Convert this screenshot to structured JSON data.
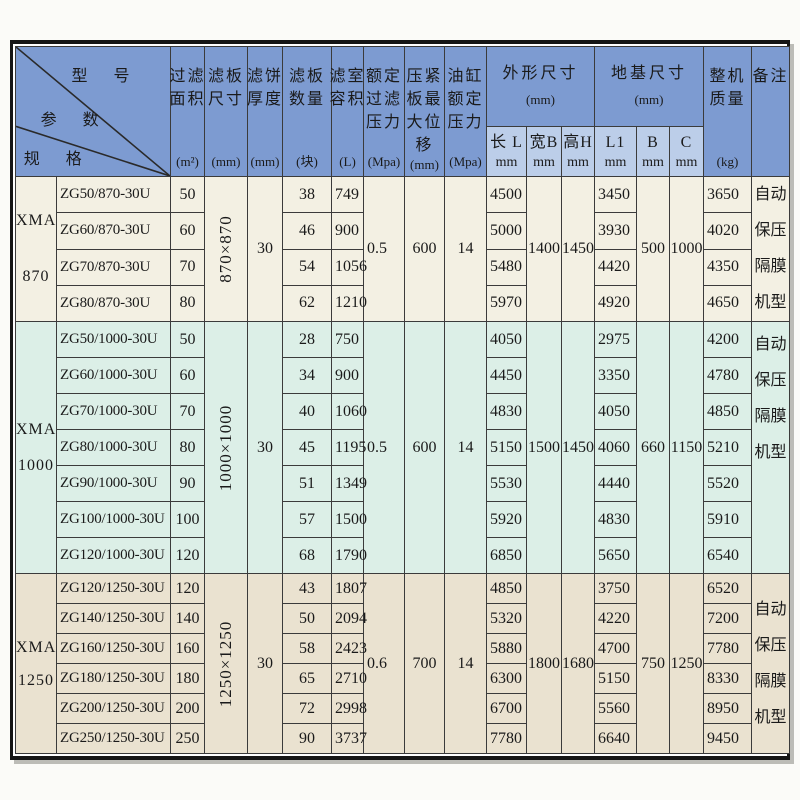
{
  "page": {
    "background": "#fbfbf8"
  },
  "table": {
    "frame_color": "#161616",
    "grid_color": "#3b3b3b",
    "header": {
      "bg": "#7d9bd1",
      "sub_bg": "#bccee9",
      "corner": {
        "model_label": "型 号",
        "param_label": "参 数",
        "spec_label": "规 格"
      },
      "cols": [
        {
          "lines": [
            "过滤",
            "面积"
          ],
          "unit": "(m²)"
        },
        {
          "lines": [
            "滤板",
            "尺寸"
          ],
          "unit": "(mm)"
        },
        {
          "lines": [
            "滤饼",
            "厚度"
          ],
          "unit": "(mm)"
        },
        {
          "lines": [
            "滤板",
            "数量"
          ],
          "unit": "(块)"
        },
        {
          "lines": [
            "滤室",
            "容积"
          ],
          "unit": "(L)"
        },
        {
          "lines": [
            "额定",
            "过滤",
            "压力"
          ],
          "unit": "(Mpa)"
        },
        {
          "lines": [
            "压紧",
            "板最",
            "大位",
            "移"
          ],
          "unit": "(mm)"
        },
        {
          "lines": [
            "油缸",
            "额定",
            "压力"
          ],
          "unit": "(Mpa)"
        }
      ],
      "outline_group": {
        "title": "外形尺寸",
        "unit": "(mm)",
        "subs": [
          {
            "l1": "长 L",
            "l2": "mm"
          },
          {
            "l1": "宽B",
            "l2": "mm"
          },
          {
            "l1": "高H",
            "l2": "mm"
          }
        ]
      },
      "foundation_group": {
        "title": "地基尺寸",
        "unit": "(mm)",
        "subs": [
          {
            "l1": "L1",
            "l2": "mm"
          },
          {
            "l1": "B",
            "l2": "mm"
          },
          {
            "l1": "C",
            "l2": "mm"
          }
        ]
      },
      "weight_col": {
        "lines": [
          "整机",
          "质量"
        ],
        "unit": "(kg)"
      },
      "remark_col": {
        "title": "备注"
      }
    },
    "groups": [
      {
        "bg": "#f3f0e3",
        "series": [
          "XMA",
          "870"
        ],
        "plate_size": "870×870",
        "cake_thickness": "30",
        "filter_pressure": "0.5",
        "plate_displacement": "600",
        "cylinder_pressure": "14",
        "width_B": "1400",
        "height_H": "1450",
        "found_B": "500",
        "found_C": "1000",
        "remark_lines": [
          "自动",
          "保压",
          "隔膜",
          "机型"
        ],
        "rows": [
          {
            "model": "ZG50/870-30U",
            "area": "50",
            "plates": "38",
            "volume": "749",
            "length_L": "4500",
            "found_L1": "3450",
            "weight": "3650"
          },
          {
            "model": "ZG60/870-30U",
            "area": "60",
            "plates": "46",
            "volume": "900",
            "length_L": "5000",
            "found_L1": "3930",
            "weight": "4020"
          },
          {
            "model": "ZG70/870-30U",
            "area": "70",
            "plates": "54",
            "volume": "1056",
            "length_L": "5480",
            "found_L1": "4420",
            "weight": "4350"
          },
          {
            "model": "ZG80/870-30U",
            "area": "80",
            "plates": "62",
            "volume": "1210",
            "length_L": "5970",
            "found_L1": "4920",
            "weight": "4650"
          }
        ]
      },
      {
        "bg": "#dcefe7",
        "series": [
          "XMA",
          "1000"
        ],
        "plate_size": "1000×1000",
        "cake_thickness": "30",
        "filter_pressure": "0.5",
        "plate_displacement": "600",
        "cylinder_pressure": "14",
        "width_B": "1500",
        "height_H": "1450",
        "found_B": "660",
        "found_C": "1150",
        "remark_lines": [
          "自动",
          "保压",
          "隔膜",
          "机型"
        ],
        "rows": [
          {
            "model": "ZG50/1000-30U",
            "area": "50",
            "plates": "28",
            "volume": "750",
            "length_L": "4050",
            "found_L1": "2975",
            "weight": "4200"
          },
          {
            "model": "ZG60/1000-30U",
            "area": "60",
            "plates": "34",
            "volume": "900",
            "length_L": "4450",
            "found_L1": "3350",
            "weight": "4780"
          },
          {
            "model": "ZG70/1000-30U",
            "area": "70",
            "plates": "40",
            "volume": "1060",
            "length_L": "4830",
            "found_L1": "4050",
            "weight": "4850"
          },
          {
            "model": "ZG80/1000-30U",
            "area": "80",
            "plates": "45",
            "volume": "1195",
            "length_L": "5150",
            "found_L1": "4060",
            "weight": "5210"
          },
          {
            "model": "ZG90/1000-30U",
            "area": "90",
            "plates": "51",
            "volume": "1349",
            "length_L": "5530",
            "found_L1": "4440",
            "weight": "5520"
          },
          {
            "model": "ZG100/1000-30U",
            "area": "100",
            "plates": "57",
            "volume": "1500",
            "length_L": "5920",
            "found_L1": "4830",
            "weight": "5910"
          },
          {
            "model": "ZG120/1000-30U",
            "area": "120",
            "plates": "68",
            "volume": "1790",
            "length_L": "6850",
            "found_L1": "5650",
            "weight": "6540"
          }
        ]
      },
      {
        "bg": "#eae2d0",
        "series": [
          "XMA",
          "1250"
        ],
        "plate_size": "1250×1250",
        "cake_thickness": "30",
        "filter_pressure": "0.6",
        "plate_displacement": "700",
        "cylinder_pressure": "14",
        "width_B": "1800",
        "height_H": "1680",
        "found_B": "750",
        "found_C": "1250",
        "remark_lines": [
          "自动",
          "保压",
          "隔膜",
          "机型"
        ],
        "rows": [
          {
            "model": "ZG120/1250-30U",
            "area": "120",
            "plates": "43",
            "volume": "1807",
            "length_L": "4850",
            "found_L1": "3750",
            "weight": "6520"
          },
          {
            "model": "ZG140/1250-30U",
            "area": "140",
            "plates": "50",
            "volume": "2094",
            "length_L": "5320",
            "found_L1": "4220",
            "weight": "7200"
          },
          {
            "model": "ZG160/1250-30U",
            "area": "160",
            "plates": "58",
            "volume": "2423",
            "length_L": "5880",
            "found_L1": "4700",
            "weight": "7780"
          },
          {
            "model": "ZG180/1250-30U",
            "area": "180",
            "plates": "65",
            "volume": "2710",
            "length_L": "6300",
            "found_L1": "5150",
            "weight": "8330"
          },
          {
            "model": "ZG200/1250-30U",
            "area": "200",
            "plates": "72",
            "volume": "2998",
            "length_L": "6700",
            "found_L1": "5560",
            "weight": "8950"
          },
          {
            "model": "ZG250/1250-30U",
            "area": "250",
            "plates": "90",
            "volume": "3737",
            "length_L": "7780",
            "found_L1": "6640",
            "weight": "9450"
          }
        ]
      }
    ]
  }
}
